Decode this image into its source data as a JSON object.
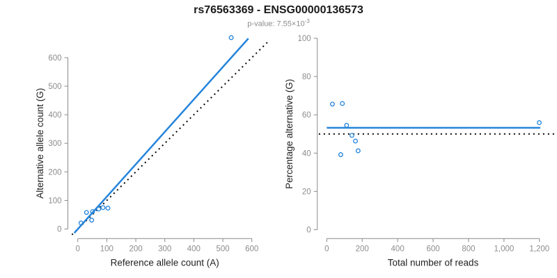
{
  "header": {
    "title": "rs76563369 - ENSG00000136573",
    "subtitle_prefix": "p-value: 7.55×10",
    "subtitle_exponent": "-3"
  },
  "colors": {
    "accent_blue": "#2484DB",
    "dotted_black": "#000000",
    "axis_gray": "#8a8a8a",
    "tick_label_gray": "#8c8c8c",
    "axis_title_dark": "#222222",
    "title_black": "#1a1a1a",
    "subtitle_gray": "#8c8c8c"
  },
  "chart_data": [
    {
      "type": "scatter",
      "name": "allele-count-plot",
      "xlabel": "Reference allele count (A)",
      "ylabel": "Alternative allele count (G)",
      "xlim": [
        0,
        600
      ],
      "ylim": [
        0,
        600
      ],
      "xticks": [
        0,
        100,
        200,
        300,
        400,
        500,
        600
      ],
      "xtick_labels": [
        "0",
        "100",
        "200",
        "300",
        "400",
        "500",
        "600"
      ],
      "yticks": [
        0,
        100,
        200,
        300,
        400,
        500,
        600
      ],
      "ytick_labels": [
        "0",
        "100",
        "200",
        "300",
        "400",
        "500",
        "600"
      ],
      "grid": false,
      "points": [
        {
          "x": 11,
          "y": 21
        },
        {
          "x": 30,
          "y": 58
        },
        {
          "x": 48,
          "y": 31
        },
        {
          "x": 51,
          "y": 61
        },
        {
          "x": 72,
          "y": 70
        },
        {
          "x": 87,
          "y": 75
        },
        {
          "x": 104,
          "y": 73
        },
        {
          "x": 529,
          "y": 670
        }
      ],
      "lines": [
        {
          "name": "identity-line",
          "style": "dotted",
          "color": "#000000",
          "x": [
            -20,
            655
          ],
          "y": [
            -20,
            655
          ]
        },
        {
          "name": "fit-line",
          "style": "solid",
          "color": "#2484DB",
          "x": [
            -12,
            588
          ],
          "y": [
            -14,
            667
          ]
        }
      ]
    },
    {
      "type": "scatter",
      "name": "percentage-plot",
      "xlabel": "Total number of reads",
      "ylabel": "Percentage alternative (G)",
      "xlim": [
        0,
        1200
      ],
      "ylim": [
        0,
        100
      ],
      "xticks": [
        0,
        200,
        400,
        600,
        800,
        1000,
        1200
      ],
      "xtick_labels": [
        "0",
        "200",
        "400",
        "600",
        "800",
        "1,000",
        "1,200"
      ],
      "yticks": [
        0,
        20,
        40,
        60,
        80,
        100
      ],
      "ytick_labels": [
        "0",
        "20",
        "40",
        "60",
        "80",
        "100"
      ],
      "grid": false,
      "points": [
        {
          "x": 32,
          "y": 65.6
        },
        {
          "x": 88,
          "y": 65.9
        },
        {
          "x": 79,
          "y": 39.2
        },
        {
          "x": 112,
          "y": 54.5
        },
        {
          "x": 142,
          "y": 49.3
        },
        {
          "x": 162,
          "y": 46.3
        },
        {
          "x": 177,
          "y": 41.2
        },
        {
          "x": 1199,
          "y": 55.9
        }
      ],
      "lines": [
        {
          "name": "fifty-percent-line",
          "style": "dotted",
          "color": "#000000",
          "x": [
            -45,
            1288
          ],
          "y": [
            50,
            50
          ]
        },
        {
          "name": "mean-percentage-line",
          "style": "solid",
          "color": "#2484DB",
          "x": [
            0,
            1205
          ],
          "y": [
            53.2,
            53.2
          ]
        }
      ]
    }
  ]
}
